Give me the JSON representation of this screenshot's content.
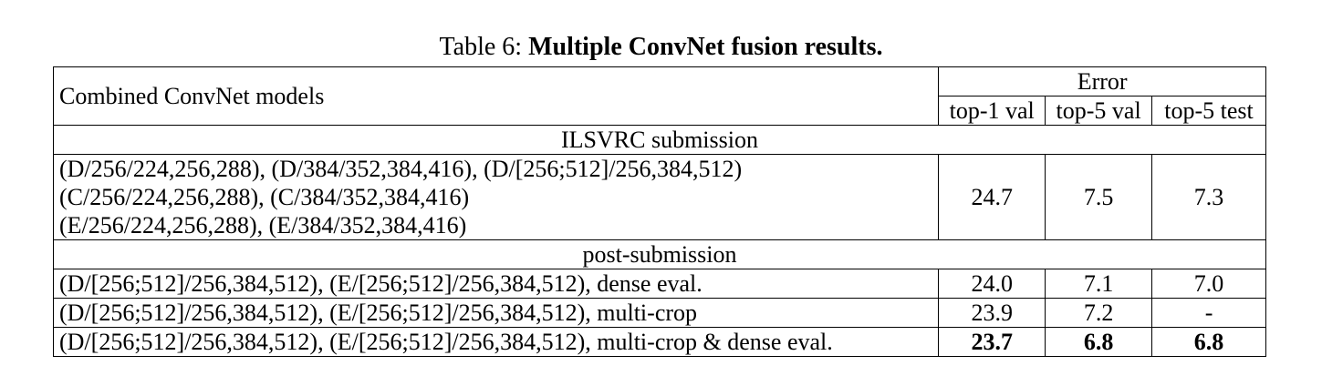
{
  "caption": {
    "prefix": "Table 6: ",
    "title": "Multiple ConvNet fusion results."
  },
  "header": {
    "models_label": "Combined ConvNet models",
    "error_label": "Error",
    "col_top1_val": "top-1 val",
    "col_top5_val": "top-5 val",
    "col_top5_test": "top-5 test"
  },
  "sections": [
    {
      "label": "ILSVRC submission",
      "rows": [
        {
          "models": [
            "(D/256/224,256,288), (D/384/352,384,416), (D/[256;512]/256,384,512)",
            "(C/256/224,256,288), (C/384/352,384,416)",
            "(E/256/224,256,288), (E/384/352,384,416)"
          ],
          "top1_val": "24.7",
          "top5_val": "7.5",
          "top5_test": "7.3"
        }
      ]
    },
    {
      "label": "post-submission",
      "rows": [
        {
          "models": [
            "(D/[256;512]/256,384,512), (E/[256;512]/256,384,512), dense eval."
          ],
          "top1_val": "24.0",
          "top5_val": "7.1",
          "top5_test": "7.0"
        },
        {
          "models": [
            "(D/[256;512]/256,384,512), (E/[256;512]/256,384,512), multi-crop"
          ],
          "top1_val": "23.9",
          "top5_val": "7.2",
          "top5_test": "-"
        },
        {
          "models": [
            "(D/[256;512]/256,384,512), (E/[256;512]/256,384,512), multi-crop & dense eval."
          ],
          "top1_val": "23.7",
          "top5_val": "6.8",
          "top5_test": "6.8",
          "bold": true
        }
      ]
    }
  ]
}
